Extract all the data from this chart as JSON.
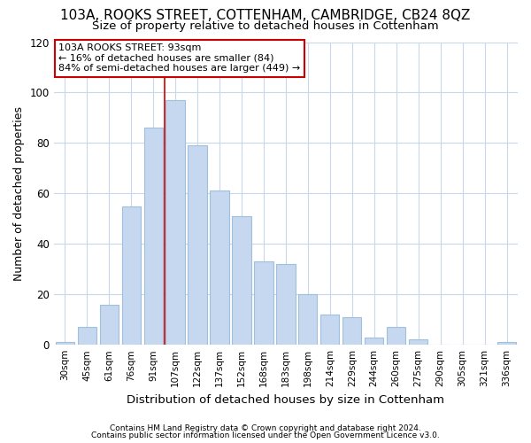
{
  "title": "103A, ROOKS STREET, COTTENHAM, CAMBRIDGE, CB24 8QZ",
  "subtitle": "Size of property relative to detached houses in Cottenham",
  "xlabel": "Distribution of detached houses by size in Cottenham",
  "ylabel": "Number of detached properties",
  "bar_labels": [
    "30sqm",
    "45sqm",
    "61sqm",
    "76sqm",
    "91sqm",
    "107sqm",
    "122sqm",
    "137sqm",
    "152sqm",
    "168sqm",
    "183sqm",
    "198sqm",
    "214sqm",
    "229sqm",
    "244sqm",
    "260sqm",
    "275sqm",
    "290sqm",
    "305sqm",
    "321sqm",
    "336sqm"
  ],
  "bar_values": [
    1,
    7,
    16,
    55,
    86,
    97,
    79,
    61,
    51,
    33,
    32,
    20,
    12,
    11,
    3,
    7,
    2,
    0,
    0,
    0,
    1
  ],
  "bar_color": "#c5d8f0",
  "bar_edge_color": "#a0bedd",
  "property_line_x": 4.5,
  "annotation_title": "103A ROOKS STREET: 93sqm",
  "annotation_line1": "← 16% of detached houses are smaller (84)",
  "annotation_line2": "84% of semi-detached houses are larger (449) →",
  "annotation_box_color": "#ffffff",
  "annotation_box_edge": "#cc0000",
  "vline_color": "#cc0000",
  "footer1": "Contains HM Land Registry data © Crown copyright and database right 2024.",
  "footer2": "Contains public sector information licensed under the Open Government Licence v3.0.",
  "ylim": [
    0,
    120
  ],
  "yticks": [
    0,
    20,
    40,
    60,
    80,
    100,
    120
  ],
  "bg_color": "#ffffff",
  "fig_bg_color": "#ffffff",
  "title_fontsize": 11,
  "subtitle_fontsize": 9.5,
  "ylabel_fontsize": 9,
  "xlabel_fontsize": 9.5
}
